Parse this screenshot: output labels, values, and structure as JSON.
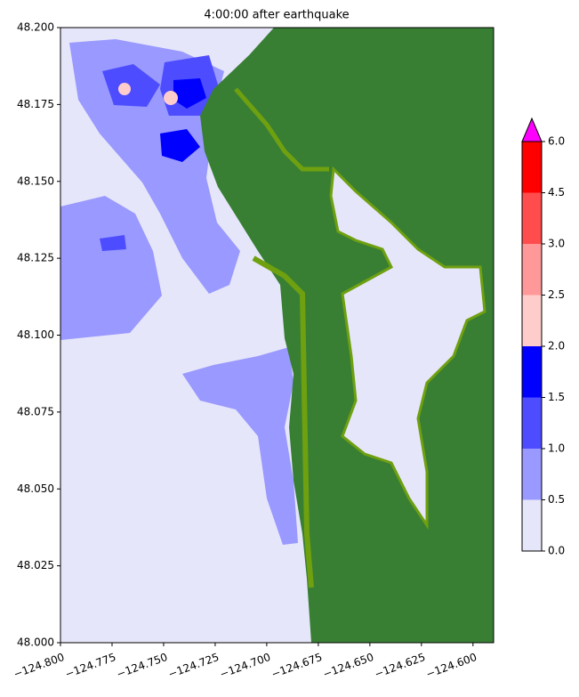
{
  "chart_data": {
    "type": "map",
    "title": "4:00:00 after earthquake",
    "xlim": [
      -124.8,
      -124.59
    ],
    "ylim": [
      48.0,
      48.2
    ],
    "xticks": [
      {
        "value": -124.8,
        "label": "−124.800"
      },
      {
        "value": -124.775,
        "label": "−124.775"
      },
      {
        "value": -124.75,
        "label": "−124.750"
      },
      {
        "value": -124.725,
        "label": "−124.725"
      },
      {
        "value": -124.7,
        "label": "−124.700"
      },
      {
        "value": -124.675,
        "label": "−124.675"
      },
      {
        "value": -124.65,
        "label": "−124.650"
      },
      {
        "value": -124.625,
        "label": "−124.625"
      },
      {
        "value": -124.6,
        "label": "−124.600"
      }
    ],
    "yticks": [
      {
        "value": 48.0,
        "label": "48.000"
      },
      {
        "value": 48.025,
        "label": "48.025"
      },
      {
        "value": 48.05,
        "label": "48.050"
      },
      {
        "value": 48.075,
        "label": "48.075"
      },
      {
        "value": 48.1,
        "label": "48.100"
      },
      {
        "value": 48.125,
        "label": "48.125"
      },
      {
        "value": 48.15,
        "label": "48.150"
      },
      {
        "value": 48.175,
        "label": "48.175"
      },
      {
        "value": 48.2,
        "label": "48.200"
      }
    ],
    "colorbar": {
      "ticks": [
        {
          "value": 0,
          "label": "0.0"
        },
        {
          "value": 0.5,
          "label": "0.5"
        },
        {
          "value": 1,
          "label": "1.0"
        },
        {
          "value": 1.5,
          "label": "1.5"
        },
        {
          "value": 2,
          "label": "2.0"
        },
        {
          "value": 2.5,
          "label": "2.5"
        },
        {
          "value": 3,
          "label": "3.0"
        },
        {
          "value": 4.5,
          "label": "4.5"
        },
        {
          "value": 6,
          "label": "6.0"
        }
      ],
      "colors": [
        "#e6e6fa",
        "#9999ff",
        "#4d4dff",
        "#0000ff",
        "#ffcccc",
        "#ff9999",
        "#ff4d4d",
        "#ff0000"
      ],
      "extend_color": "#ff00ff"
    }
  }
}
